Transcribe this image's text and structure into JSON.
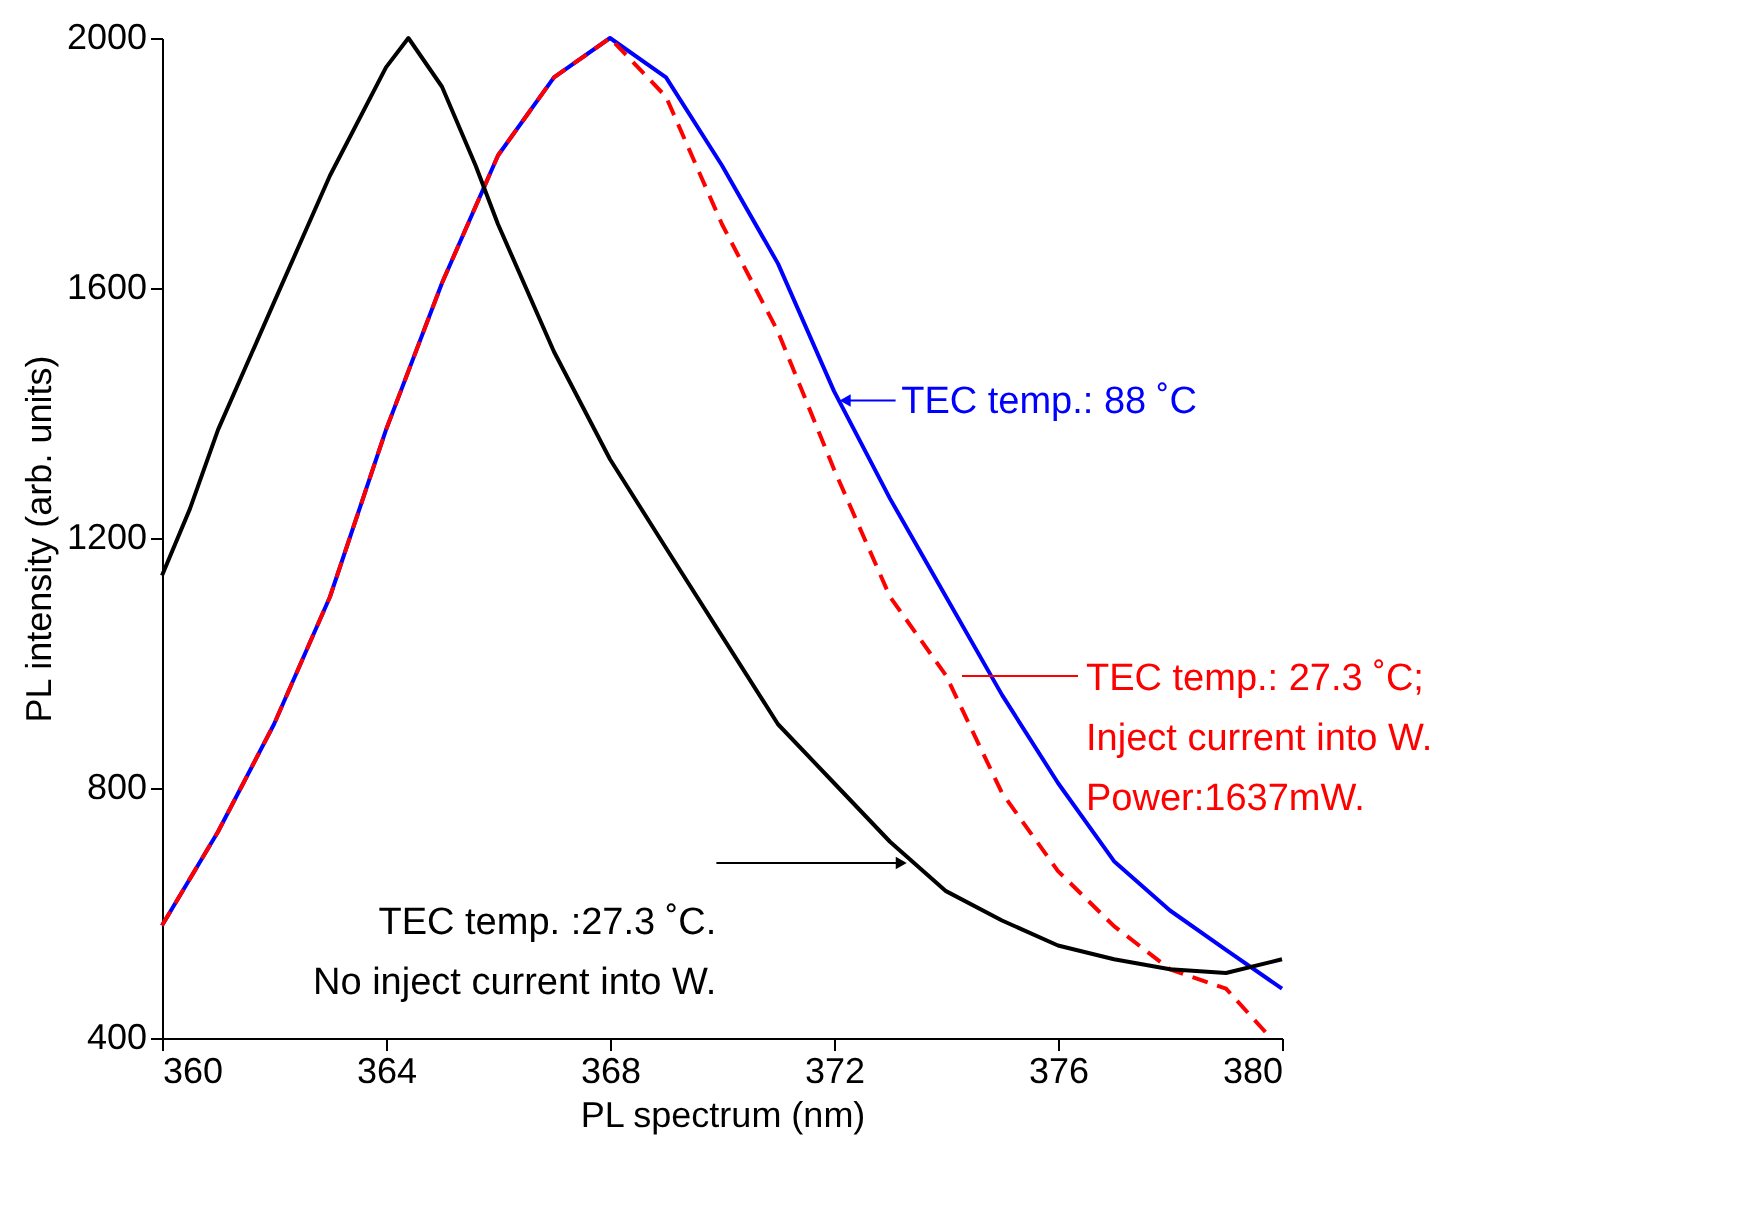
{
  "chart_data": {
    "type": "line",
    "xlabel": "PL spectrum (nm)",
    "ylabel": "PL intensity (arb. units)",
    "xlim": [
      360,
      380
    ],
    "xticks": [
      360,
      364,
      368,
      372,
      376,
      380
    ],
    "ylim": [
      400,
      2000
    ],
    "yticks": [
      400,
      800,
      1200,
      1600,
      2000
    ],
    "grid": false,
    "series": [
      {
        "color": "#0000ff",
        "line_style": "solid",
        "x": [
          360,
          361,
          362,
          363,
          364,
          365,
          366,
          367,
          368,
          369,
          370,
          371,
          372,
          373,
          374,
          375,
          376,
          377,
          378,
          379,
          380
        ],
        "values": [
          580,
          730,
          902,
          1106,
          1373,
          1608,
          1812,
          1937,
          2000,
          1937,
          1796,
          1639,
          1435,
          1263,
          1106,
          949,
          808,
          683,
          604,
          541,
          479
        ]
      },
      {
        "color": "#ff0000",
        "line_style": "dashed",
        "x": [
          360,
          361,
          362,
          363,
          364,
          365,
          366,
          367,
          368,
          369,
          370,
          371,
          372,
          373,
          374,
          375,
          376,
          377,
          378,
          379,
          379.8
        ],
        "values": [
          580,
          730,
          902,
          1106,
          1373,
          1608,
          1812,
          1937,
          2000,
          1906,
          1702,
          1530,
          1310,
          1106,
          980,
          792,
          667,
          579,
          510,
          479,
          400
        ]
      },
      {
        "color": "#000000",
        "line_style": "solid",
        "x": [
          360,
          360.5,
          361,
          362,
          363,
          364,
          364.4,
          365,
          365.6,
          366,
          367,
          368,
          369,
          370,
          371,
          372,
          373,
          374,
          375,
          376,
          377,
          378,
          379,
          380
        ],
        "values": [
          1140,
          1247,
          1373,
          1577,
          1780,
          1953,
          2000,
          1922,
          1796,
          1702,
          1498,
          1326,
          1184,
          1043,
          902,
          808,
          714,
          635,
          588,
          548,
          526,
          510,
          504,
          526
        ]
      }
    ],
    "annotations": [
      {
        "text": "TEC temp.: 88 ˚C",
        "x": 372.2,
        "y": 1420
      },
      "TEC temp.: 27.3 ˚C;\nInject current into W.\nPower:1637mW.",
      {
        "text": "TEC temp. :27.3 ˚C.\nNo inject current into W.",
        "x": 373.2,
        "y": 680
      }
    ]
  }
}
